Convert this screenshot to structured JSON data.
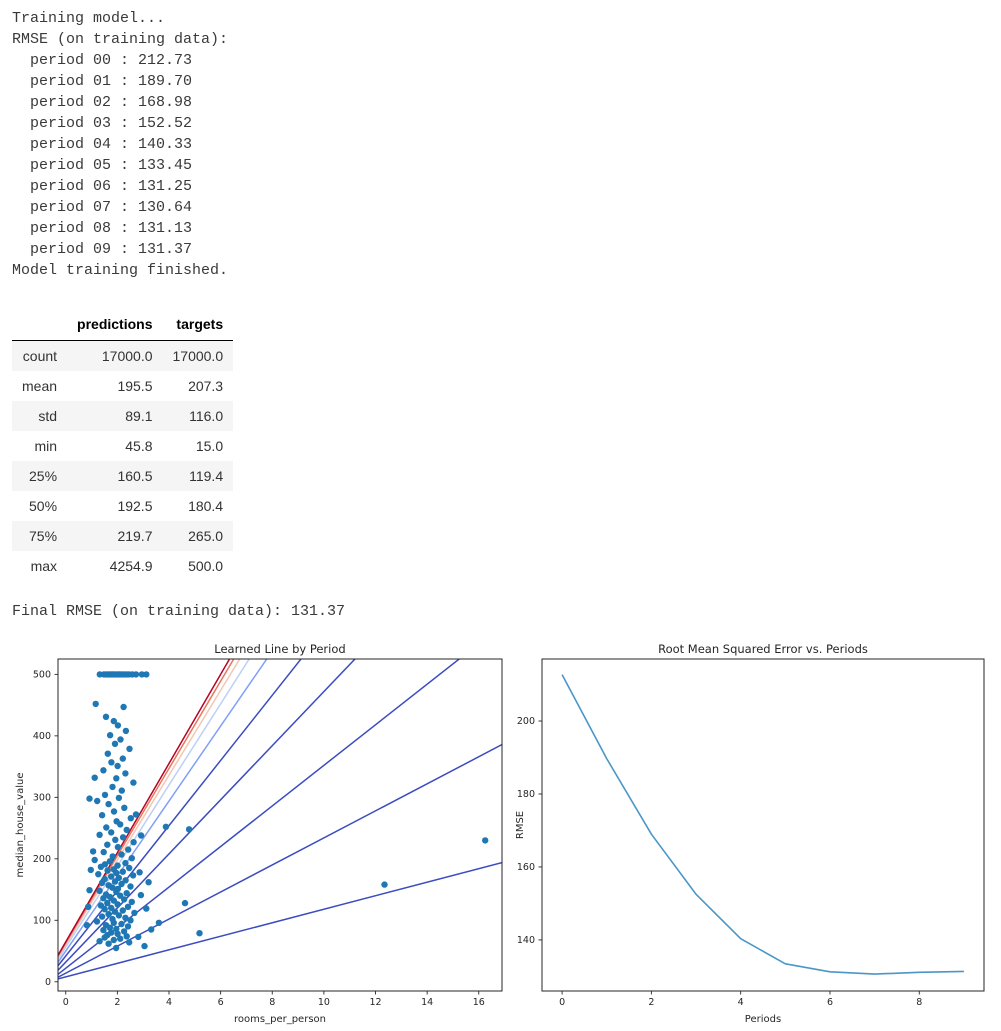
{
  "console": {
    "lines": [
      "Training model...",
      "RMSE (on training data):",
      "  period 00 : 212.73",
      "  period 01 : 189.70",
      "  period 02 : 168.98",
      "  period 03 : 152.52",
      "  period 04 : 140.33",
      "  period 05 : 133.45",
      "  period 06 : 131.25",
      "  period 07 : 130.64",
      "  period 08 : 131.13",
      "  period 09 : 131.37",
      "Model training finished."
    ]
  },
  "final_rmse_line": "Final RMSE (on training data): 131.37",
  "describe_table": {
    "columns": [
      "predictions",
      "targets"
    ],
    "rows": [
      {
        "label": "count",
        "values": [
          "17000.0",
          "17000.0"
        ]
      },
      {
        "label": "mean",
        "values": [
          "195.5",
          "207.3"
        ]
      },
      {
        "label": "std",
        "values": [
          "89.1",
          "116.0"
        ]
      },
      {
        "label": "min",
        "values": [
          "45.8",
          "15.0"
        ]
      },
      {
        "label": "25%",
        "values": [
          "160.5",
          "119.4"
        ]
      },
      {
        "label": "50%",
        "values": [
          "192.5",
          "180.4"
        ]
      },
      {
        "label": "75%",
        "values": [
          "219.7",
          "265.0"
        ]
      },
      {
        "label": "max",
        "values": [
          "4254.9",
          "500.0"
        ]
      }
    ]
  },
  "colors": {
    "scatter": "#1f77b4",
    "rmse_line": "#4a96c9",
    "spine": "#262626"
  },
  "chart_data": [
    {
      "type": "scatter",
      "title": "Learned Line by Period",
      "xlabel": "rooms_per_person",
      "ylabel": "median_house_value",
      "xlim": [
        -0.3,
        16.9
      ],
      "ylim": [
        -15,
        525
      ],
      "xticks": [
        0,
        2,
        4,
        6,
        8,
        10,
        12,
        14,
        16
      ],
      "yticks": [
        0,
        100,
        200,
        300,
        400,
        500
      ],
      "grid": false,
      "scatter": {
        "name": "training-samples",
        "color": "#1f77b4",
        "radius": 3.2,
        "points": [
          [
            1.32,
            500
          ],
          [
            1.48,
            500
          ],
          [
            1.55,
            500
          ],
          [
            1.62,
            500
          ],
          [
            1.68,
            500
          ],
          [
            1.73,
            500
          ],
          [
            1.79,
            500
          ],
          [
            1.84,
            500
          ],
          [
            1.9,
            500
          ],
          [
            1.97,
            500
          ],
          [
            2.03,
            500
          ],
          [
            2.08,
            500
          ],
          [
            2.14,
            500
          ],
          [
            2.21,
            500
          ],
          [
            2.28,
            500
          ],
          [
            2.36,
            500
          ],
          [
            2.45,
            500
          ],
          [
            2.58,
            500
          ],
          [
            2.72,
            500
          ],
          [
            2.95,
            500
          ],
          [
            3.12,
            500
          ],
          [
            1.16,
            452
          ],
          [
            2.24,
            447
          ],
          [
            1.56,
            431
          ],
          [
            1.86,
            424
          ],
          [
            2.02,
            417
          ],
          [
            2.33,
            408
          ],
          [
            1.72,
            401
          ],
          [
            2.12,
            394
          ],
          [
            1.91,
            387
          ],
          [
            2.47,
            379
          ],
          [
            1.63,
            371
          ],
          [
            2.21,
            363
          ],
          [
            1.77,
            357
          ],
          [
            2.01,
            351
          ],
          [
            1.46,
            344
          ],
          [
            2.31,
            339
          ],
          [
            1.96,
            331
          ],
          [
            2.62,
            324
          ],
          [
            1.81,
            317
          ],
          [
            2.17,
            311
          ],
          [
            1.52,
            304
          ],
          [
            2.06,
            299
          ],
          [
            1.12,
            332
          ],
          [
            1.22,
            294
          ],
          [
            1.66,
            289
          ],
          [
            2.27,
            283
          ],
          [
            1.87,
            277
          ],
          [
            1.41,
            271
          ],
          [
            2.52,
            266
          ],
          [
            1.97,
            261
          ],
          [
            2.11,
            256
          ],
          [
            1.57,
            251
          ],
          [
            0.92,
            298
          ],
          [
            3.88,
            252
          ],
          [
            2.72,
            272
          ],
          [
            2.36,
            247
          ],
          [
            1.76,
            243
          ],
          [
            1.31,
            239
          ],
          [
            2.22,
            235
          ],
          [
            1.92,
            231
          ],
          [
            2.63,
            227
          ],
          [
            1.61,
            223
          ],
          [
            2.02,
            219
          ],
          [
            2.42,
            215
          ],
          [
            1.47,
            211
          ],
          [
            2.16,
            207
          ],
          [
            1.82,
            204
          ],
          [
            2.56,
            201
          ],
          [
            1.06,
            212
          ],
          [
            4.78,
            248
          ],
          [
            2.92,
            238
          ],
          [
            1.12,
            198
          ],
          [
            1.71,
            196
          ],
          [
            2.31,
            193
          ],
          [
            1.52,
            191
          ],
          [
            2.01,
            189
          ],
          [
            1.36,
            187
          ],
          [
            2.46,
            185
          ],
          [
            1.86,
            183
          ],
          [
            1.62,
            181
          ],
          [
            2.21,
            179
          ],
          [
            1.96,
            177
          ],
          [
            1.26,
            175
          ],
          [
            2.61,
            173
          ],
          [
            1.76,
            171
          ],
          [
            2.06,
            169
          ],
          [
            1.51,
            167
          ],
          [
            2.32,
            165
          ],
          [
            1.91,
            163
          ],
          [
            1.41,
            161
          ],
          [
            2.16,
            159
          ],
          [
            1.66,
            157
          ],
          [
            2.51,
            155
          ],
          [
            1.81,
            153
          ],
          [
            2.02,
            151
          ],
          [
            12.35,
            158
          ],
          [
            0.97,
            182
          ],
          [
            3.21,
            162
          ],
          [
            2.86,
            178
          ],
          [
            1.31,
            148
          ],
          [
            1.96,
            146
          ],
          [
            2.36,
            144
          ],
          [
            1.56,
            142
          ],
          [
            2.11,
            140
          ],
          [
            1.71,
            138
          ],
          [
            1.46,
            136
          ],
          [
            2.26,
            134
          ],
          [
            1.86,
            132
          ],
          [
            2.56,
            130
          ],
          [
            1.61,
            128
          ],
          [
            2.01,
            126
          ],
          [
            1.36,
            124
          ],
          [
            2.41,
            122
          ],
          [
            1.76,
            120
          ],
          [
            1.51,
            118
          ],
          [
            2.21,
            116
          ],
          [
            1.91,
            114
          ],
          [
            2.66,
            112
          ],
          [
            1.66,
            110
          ],
          [
            2.06,
            108
          ],
          [
            1.41,
            106
          ],
          [
            2.31,
            104
          ],
          [
            1.81,
            102
          ],
          [
            2.51,
            100
          ],
          [
            4.62,
            128
          ],
          [
            0.87,
            122
          ],
          [
            3.12,
            119
          ],
          [
            2.91,
            141
          ],
          [
            0.92,
            149
          ],
          [
            1.21,
            98
          ],
          [
            1.86,
            96
          ],
          [
            2.16,
            94
          ],
          [
            1.56,
            92
          ],
          [
            2.41,
            90
          ],
          [
            1.71,
            88
          ],
          [
            1.96,
            86
          ],
          [
            1.46,
            84
          ],
          [
            2.26,
            82
          ],
          [
            1.76,
            80
          ],
          [
            2.01,
            78
          ],
          [
            1.61,
            76
          ],
          [
            2.36,
            74
          ],
          [
            1.51,
            72
          ],
          [
            2.11,
            70
          ],
          [
            1.86,
            68
          ],
          [
            1.31,
            66
          ],
          [
            2.46,
            64
          ],
          [
            1.66,
            62
          ],
          [
            3.31,
            85
          ],
          [
            3.61,
            96
          ],
          [
            5.18,
            79
          ],
          [
            0.82,
            92
          ],
          [
            2.81,
            73
          ],
          [
            3.05,
            58
          ],
          [
            1.95,
            55
          ],
          [
            16.25,
            230
          ]
        ]
      },
      "lines": [
        {
          "name": "period-00",
          "color": "#3b4cc0",
          "slope": 11.0,
          "intercept": 8
        },
        {
          "name": "period-01",
          "color": "#3b4cc0",
          "slope": 22.0,
          "intercept": 14
        },
        {
          "name": "period-02",
          "color": "#3b4cc0",
          "slope": 33.0,
          "intercept": 22
        },
        {
          "name": "period-03",
          "color": "#3b4cc0",
          "slope": 44.0,
          "intercept": 32
        },
        {
          "name": "period-04",
          "color": "#3b4cc0",
          "slope": 53.0,
          "intercept": 42
        },
        {
          "name": "period-05",
          "color": "#7f9ff9",
          "slope": 61.0,
          "intercept": 50
        },
        {
          "name": "period-06",
          "color": "#bcd0f7",
          "slope": 66.0,
          "intercept": 56
        },
        {
          "name": "period-07",
          "color": "#f3c7b1",
          "slope": 69.0,
          "intercept": 60
        },
        {
          "name": "period-08",
          "color": "#e8765c",
          "slope": 71.0,
          "intercept": 63
        },
        {
          "name": "period-09",
          "color": "#b40426",
          "slope": 72.5,
          "intercept": 65
        }
      ]
    },
    {
      "type": "line",
      "title": "Root Mean Squared Error vs. Periods",
      "xlabel": "Periods",
      "ylabel": "RMSE",
      "xlim": [
        -0.45,
        9.45
      ],
      "ylim": [
        126,
        217
      ],
      "xticks": [
        0,
        2,
        4,
        6,
        8
      ],
      "yticks": [
        140,
        160,
        180,
        200
      ],
      "grid": false,
      "series": [
        {
          "name": "training-rmse",
          "color": "#4a96c9",
          "width": 1.6,
          "x": [
            0,
            1,
            2,
            3,
            4,
            5,
            6,
            7,
            8,
            9
          ],
          "y": [
            212.73,
            189.7,
            168.98,
            152.52,
            140.33,
            133.45,
            131.25,
            130.64,
            131.13,
            131.37
          ]
        }
      ]
    }
  ]
}
